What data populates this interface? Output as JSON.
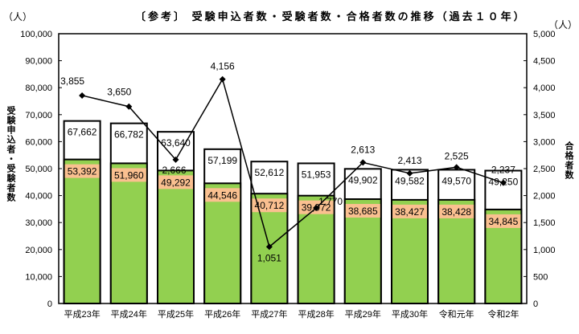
{
  "chart_data": {
    "type": "bar",
    "title": "〔参考〕 受験申込者数・受験者数・合格者数の推移（過去１０年）",
    "left_unit": "（人）",
    "right_unit": "（人）",
    "ylabel": "受験申込者・受験者数",
    "y2label": "合格者数",
    "ylim": [
      0,
      100000
    ],
    "y2lim": [
      0,
      5000
    ],
    "yticks": [
      "0",
      "10,000",
      "20,000",
      "30,000",
      "40,000",
      "50,000",
      "60,000",
      "70,000",
      "80,000",
      "90,000",
      "100,000"
    ],
    "y2ticks": [
      "0",
      "500",
      "1,000",
      "1,500",
      "2,000",
      "2,500",
      "3,000",
      "3,500",
      "4,000",
      "4,500",
      "5,000"
    ],
    "categories": [
      "平成23年",
      "平成24年",
      "平成25年",
      "平成26年",
      "平成27年",
      "平成28年",
      "平成29年",
      "平成30年",
      "令和元年",
      "令和2年"
    ],
    "series": [
      {
        "type": "bar",
        "color": "#ffffff",
        "values": [
          67662,
          66782,
          63640,
          57199,
          52612,
          51953,
          49902,
          49582,
          49570,
          49250
        ],
        "labels": [
          "67,662",
          "66,782",
          "63,640",
          "57,199",
          "52,612",
          "51,953",
          "49,902",
          "49,582",
          "49,570",
          "49,250"
        ]
      },
      {
        "type": "bar",
        "color": "#92d050",
        "label_bg": "#fac090",
        "values": [
          53392,
          51960,
          49292,
          44546,
          40712,
          39972,
          38685,
          38427,
          38428,
          34845
        ],
        "labels": [
          "53,392",
          "51,960",
          "49,292",
          "44,546",
          "40,712",
          "39,972",
          "38,685",
          "38,427",
          "38,428",
          "34,845"
        ]
      },
      {
        "type": "line",
        "axis": "right",
        "color": "#000000",
        "values": [
          3855,
          3650,
          2666,
          4156,
          1051,
          1770,
          2613,
          2413,
          2525,
          2237
        ],
        "labels": [
          "3,855",
          "3,650",
          "2,666",
          "4,156",
          "1,051",
          "1,770",
          "2,613",
          "2,413",
          "2,525",
          "2,237"
        ]
      }
    ],
    "grid": false
  }
}
